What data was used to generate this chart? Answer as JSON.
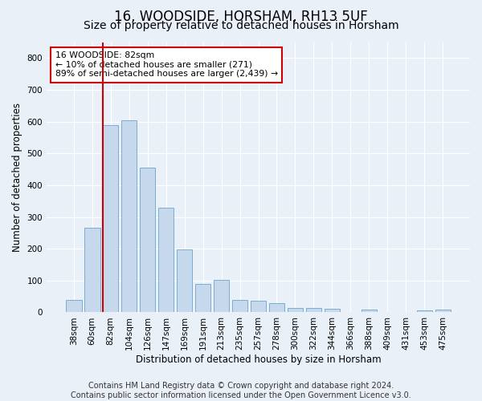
{
  "title": "16, WOODSIDE, HORSHAM, RH13 5UF",
  "subtitle": "Size of property relative to detached houses in Horsham",
  "xlabel": "Distribution of detached houses by size in Horsham",
  "ylabel": "Number of detached properties",
  "categories": [
    "38sqm",
    "60sqm",
    "82sqm",
    "104sqm",
    "126sqm",
    "147sqm",
    "169sqm",
    "191sqm",
    "213sqm",
    "235sqm",
    "257sqm",
    "278sqm",
    "300sqm",
    "322sqm",
    "344sqm",
    "366sqm",
    "388sqm",
    "409sqm",
    "431sqm",
    "453sqm",
    "475sqm"
  ],
  "values": [
    38,
    265,
    590,
    605,
    455,
    330,
    197,
    90,
    103,
    38,
    37,
    30,
    14,
    14,
    10,
    0,
    8,
    0,
    0,
    5,
    8
  ],
  "bar_color": "#c5d8ec",
  "bar_edge_color": "#7aadd4",
  "highlight_index": 2,
  "highlight_line_color": "#cc0000",
  "annotation_text": "16 WOODSIDE: 82sqm\n← 10% of detached houses are smaller (271)\n89% of semi-detached houses are larger (2,439) →",
  "annotation_box_color": "#ffffff",
  "annotation_box_edge": "#cc0000",
  "ylim": [
    0,
    850
  ],
  "yticks": [
    0,
    100,
    200,
    300,
    400,
    500,
    600,
    700,
    800
  ],
  "footer_line1": "Contains HM Land Registry data © Crown copyright and database right 2024.",
  "footer_line2": "Contains public sector information licensed under the Open Government Licence v3.0.",
  "background_color": "#eaf0f8",
  "plot_background": "#eaf0f8",
  "grid_color": "#ffffff",
  "title_fontsize": 12,
  "subtitle_fontsize": 10,
  "axis_label_fontsize": 8.5,
  "tick_fontsize": 7.5,
  "footer_fontsize": 7
}
